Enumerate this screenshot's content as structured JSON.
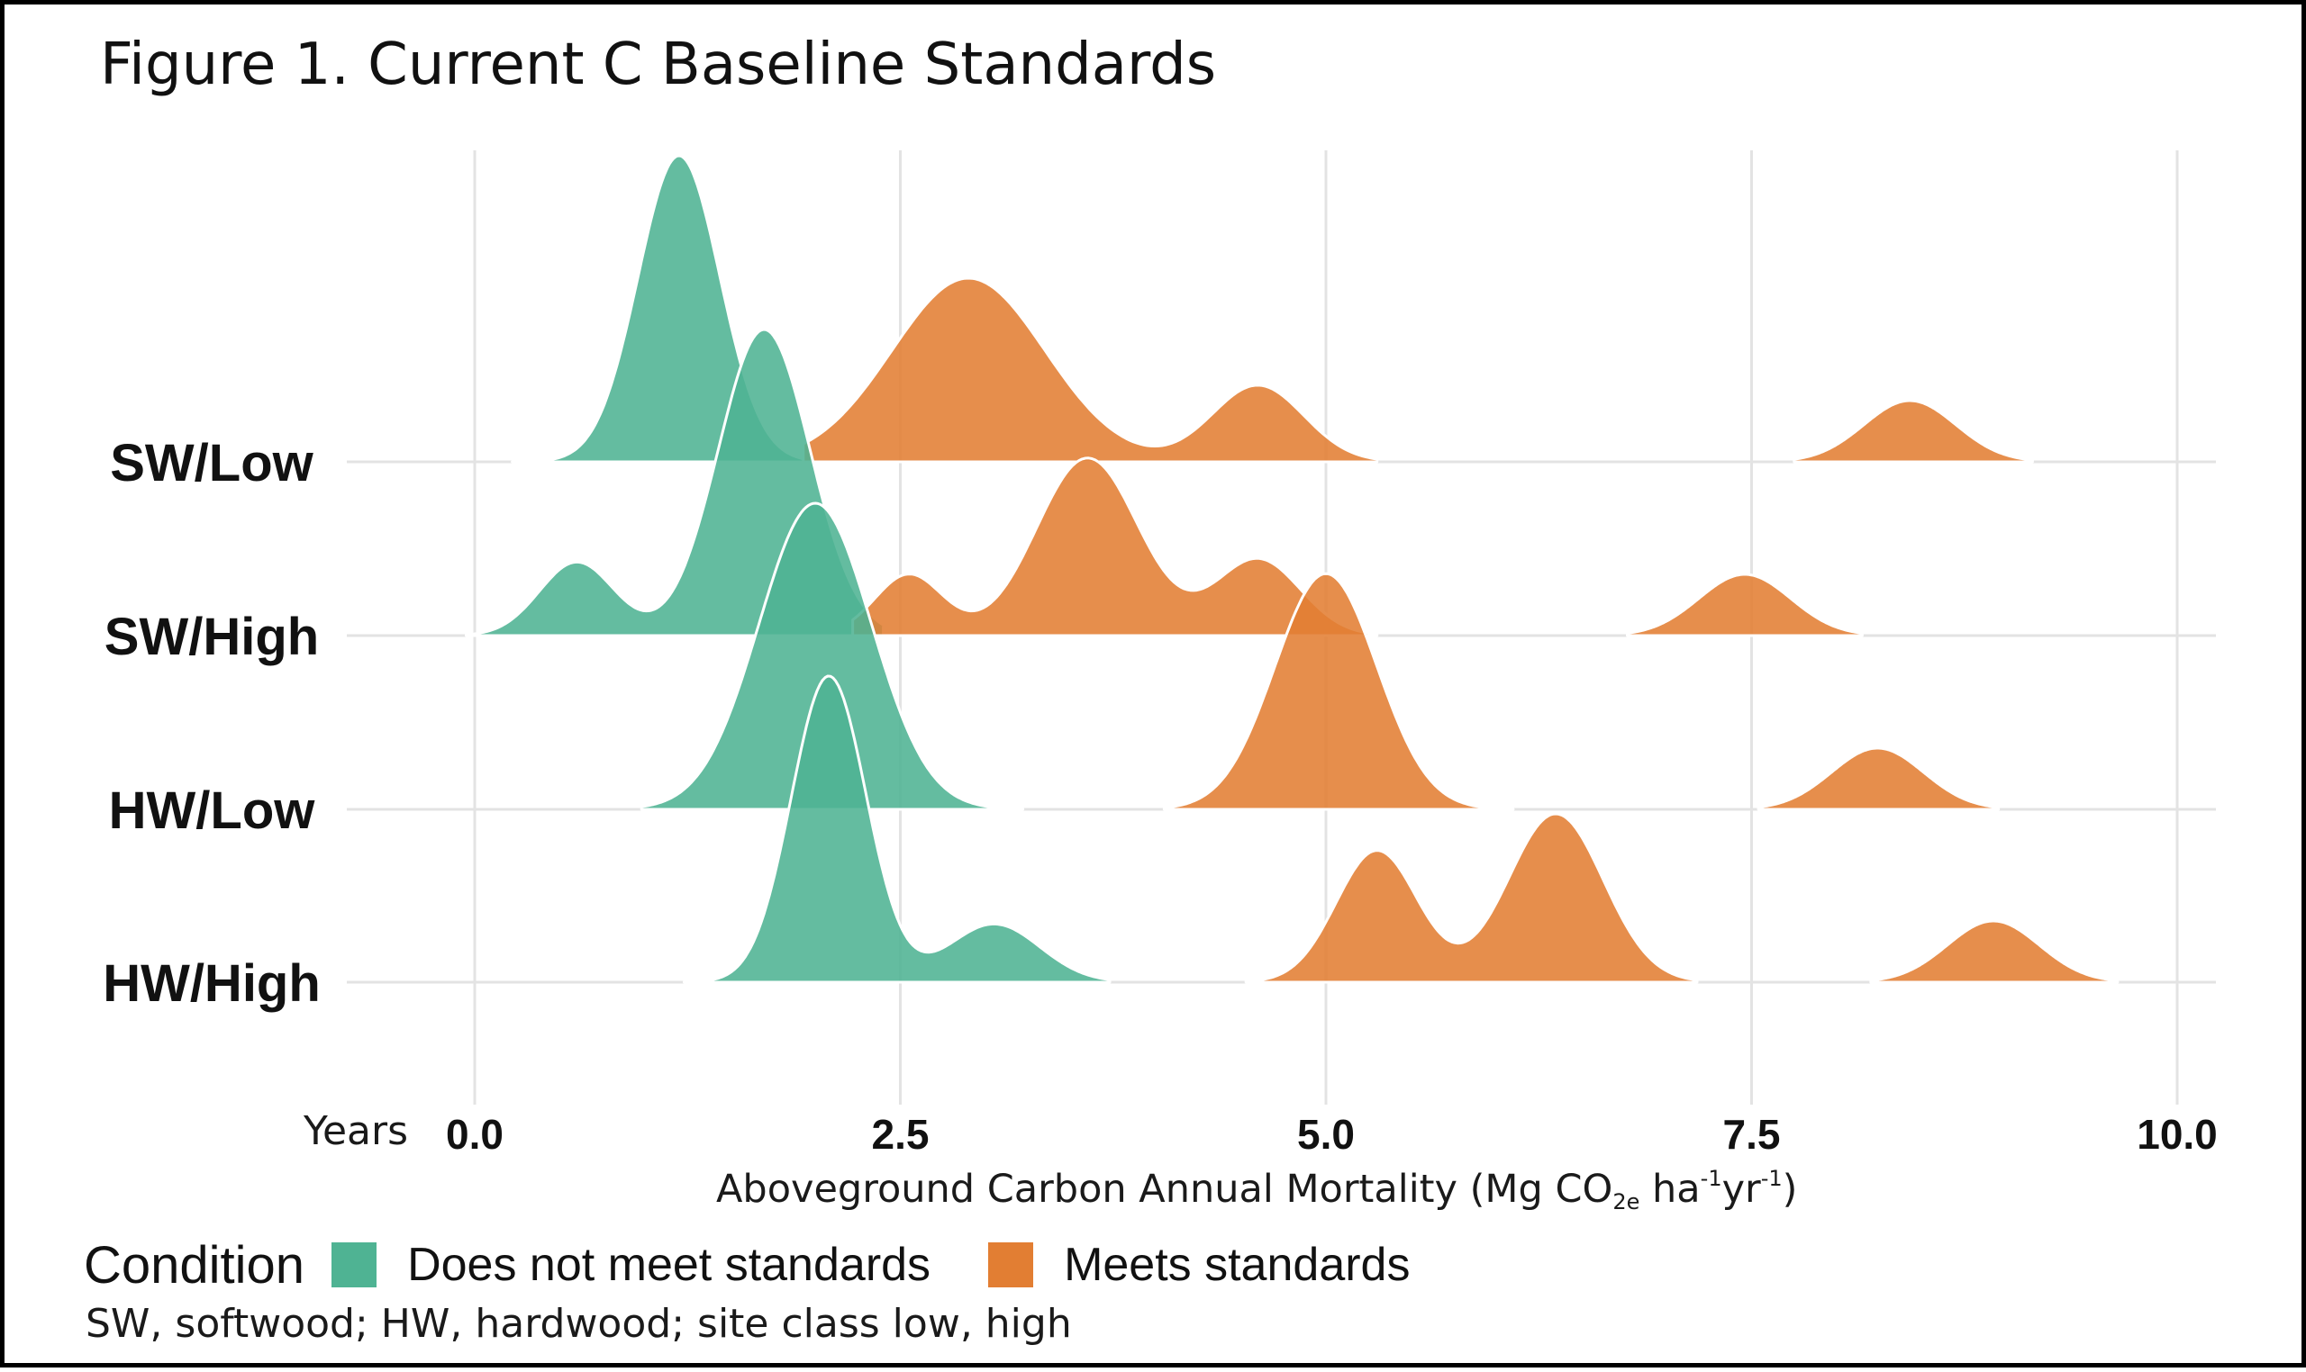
{
  "title": "Figure 1. Current C Baseline Standards",
  "caption": "SW, softwood; HW, hardwood; site class low, high",
  "colors": {
    "does_not_meet": "#4fb393",
    "meets": "#e27e33",
    "grid": "#e3e3e3",
    "ridge_outline": "#ffffff"
  },
  "legend": {
    "title": "Condition",
    "items": [
      {
        "label": "Does not meet standards",
        "color": "#4fb393"
      },
      {
        "label": "Meets standards",
        "color": "#e27e33"
      }
    ]
  },
  "chart_data": {
    "type": "ridgeline",
    "title": "Figure 1. Current C Baseline Standards",
    "xlabel": {
      "text_before": "Aboveground Carbon Annual Mortality (Mg CO",
      "sub": "2e",
      "text_mid": " ha",
      "sup1": "-1",
      "text_mid2": "yr",
      "sup2": "-1",
      "text_after": ")"
    },
    "x_axis_label_left": "Years",
    "xlim": [
      0,
      10
    ],
    "xticks": [
      {
        "value": 0,
        "label": "0.0"
      },
      {
        "value": 2.5,
        "label": "2.5"
      },
      {
        "value": 5,
        "label": "5.0"
      },
      {
        "value": 7.5,
        "label": "7.5"
      },
      {
        "value": 10,
        "label": "10.0"
      }
    ],
    "grid": true,
    "legend_position": "bottom",
    "categories": [
      "SW/Low",
      "SW/High",
      "HW/Low",
      "HW/High"
    ],
    "ridge_height_scale": 1.8,
    "series": [
      {
        "name": "Does not meet standards",
        "ridges": [
          {
            "category": "SW/Low",
            "range": [
              0.22,
              1.98
            ],
            "components": [
              {
                "mu": 1.2,
                "sigma": 0.24,
                "w": 1
              }
            ]
          },
          {
            "category": "SW/High",
            "range": [
              -0.05,
              2.4
            ],
            "components": [
              {
                "mu": 0.6,
                "sigma": 0.22,
                "w": 0.24
              },
              {
                "mu": 1.7,
                "sigma": 0.27,
                "w": 1
              }
            ]
          },
          {
            "category": "HW/Low",
            "range": [
              0.98,
              3.22
            ],
            "components": [
              {
                "mu": 2.0,
                "sigma": 0.33,
                "w": 1
              }
            ]
          },
          {
            "category": "HW/High",
            "range": [
              1.23,
              3.73
            ],
            "components": [
              {
                "mu": 2.08,
                "sigma": 0.22,
                "w": 1
              },
              {
                "mu": 3.05,
                "sigma": 0.27,
                "w": 0.19
              }
            ]
          }
        ]
      },
      {
        "name": "Meets standards",
        "ridges": [
          {
            "category": "SW/Low",
            "range": [
              1.93,
              5.3
            ],
            "components": [
              {
                "mu": 2.9,
                "sigma": 0.45,
                "w": 0.6
              },
              {
                "mu": 4.6,
                "sigma": 0.27,
                "w": 0.25
              }
            ]
          },
          {
            "category": "SW/High",
            "range": [
              2.22,
              5.3
            ],
            "components": [
              {
                "mu": 2.55,
                "sigma": 0.2,
                "w": 0.2
              },
              {
                "mu": 3.6,
                "sigma": 0.3,
                "w": 0.58
              },
              {
                "mu": 4.6,
                "sigma": 0.25,
                "w": 0.25
              }
            ]
          },
          {
            "category": "HW/Low",
            "range": [
              4.05,
              6.1
            ],
            "components": [
              {
                "mu": 5.0,
                "sigma": 0.3,
                "w": 0.77
              }
            ]
          },
          {
            "category": "HW/High",
            "range": [
              4.53,
              7.18
            ],
            "components": [
              {
                "mu": 5.3,
                "sigma": 0.24,
                "w": 0.43
              },
              {
                "mu": 6.35,
                "sigma": 0.28,
                "w": 0.55
              }
            ]
          }
        ]
      },
      {
        "name": "Meets standards",
        "ridges": [
          {
            "category": "SW/Low",
            "range": [
              7.75,
              9.15
            ],
            "components": [
              {
                "mu": 8.43,
                "sigma": 0.27,
                "w": 0.2
              }
            ]
          },
          {
            "category": "SW/High",
            "range": [
              6.77,
              8.15
            ],
            "components": [
              {
                "mu": 7.46,
                "sigma": 0.27,
                "w": 0.2
              }
            ]
          },
          {
            "category": "HW/Low",
            "range": [
              7.54,
              8.95
            ],
            "components": [
              {
                "mu": 8.24,
                "sigma": 0.27,
                "w": 0.2
              }
            ]
          },
          {
            "category": "HW/High",
            "range": [
              8.2,
              9.65
            ],
            "components": [
              {
                "mu": 8.92,
                "sigma": 0.27,
                "w": 0.2
              }
            ]
          }
        ]
      }
    ]
  }
}
